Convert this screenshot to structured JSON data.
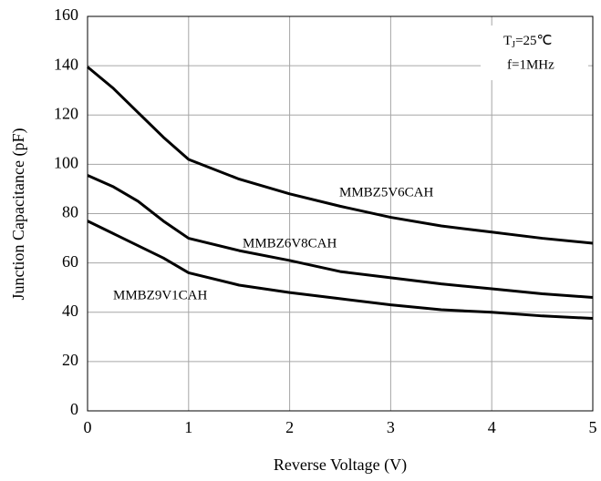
{
  "chart_data": {
    "type": "line",
    "x_label": "Reverse Voltage (V)",
    "y_label": "Junction Capacitance (pF)",
    "x": [
      0,
      0.25,
      0.5,
      0.75,
      1,
      1.5,
      2,
      2.5,
      3,
      3.5,
      4,
      4.5,
      5
    ],
    "series": [
      {
        "name": "MMBZ5V6CAH",
        "color": "#000000",
        "values": [
          139.5,
          131,
          121,
          111,
          102,
          94,
          88,
          83,
          78.5,
          75,
          72.5,
          70,
          68
        ]
      },
      {
        "name": "MMBZ6V8CAH",
        "color": "#000000",
        "values": [
          95.5,
          91,
          85,
          77,
          70,
          65,
          61,
          56.5,
          54,
          51.5,
          49.5,
          47.5,
          46
        ]
      },
      {
        "name": "MMBZ9V1CAH",
        "color": "#000000",
        "values": [
          77,
          72,
          67,
          62,
          56,
          51,
          48,
          45.5,
          43,
          41,
          40,
          38.5,
          37.5
        ]
      }
    ],
    "conditions": {
      "symbol": "T",
      "subscript": "J",
      "value": "=25℃",
      "frequency": "f=1MHz"
    },
    "xlim": [
      0,
      5
    ],
    "xticks": [
      0,
      1,
      2,
      3,
      4,
      5
    ],
    "ylim": [
      0,
      160
    ],
    "yticks": [
      0,
      20,
      40,
      60,
      80,
      100,
      120,
      140,
      160
    ],
    "grid": true
  }
}
